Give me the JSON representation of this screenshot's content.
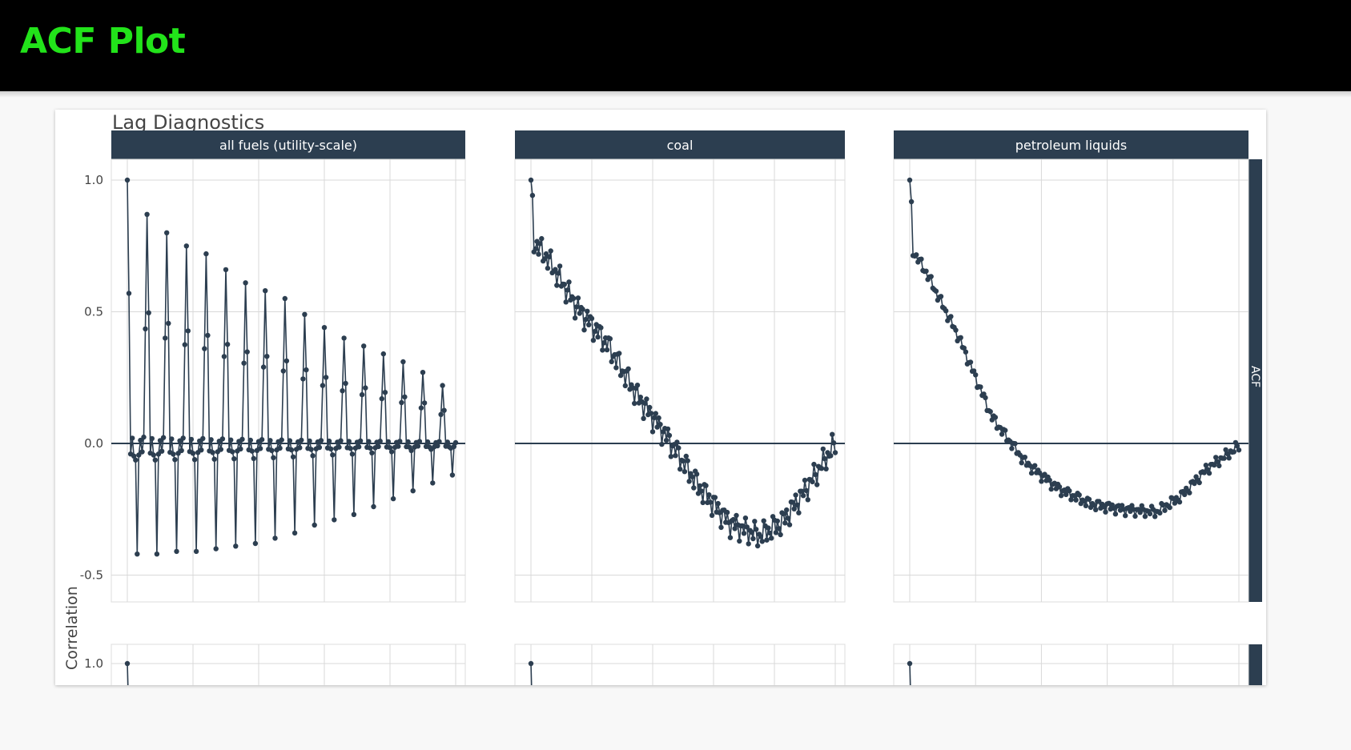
{
  "header": {
    "title": "ACF Plot"
  },
  "chart_data": {
    "type": "line",
    "title": "Lag Diagnostics",
    "ylabel": "Correlation",
    "side_strip_label": "ACF",
    "ylim": [
      -0.6,
      1.05
    ],
    "y_ticks": [
      "1.0",
      "0.5",
      "0.0",
      "-0.5"
    ],
    "series_color": "#2c3e50",
    "facets": [
      {
        "label": "all fuels (utility-scale)",
        "pattern": "seasonal",
        "n_lags": 200,
        "peaks": [
          1.0,
          0.87,
          0.8,
          0.75,
          0.72,
          0.66,
          0.61,
          0.58,
          0.55,
          0.49,
          0.44,
          0.4,
          0.37,
          0.34,
          0.31,
          0.27,
          0.22,
          0.17,
          0.12,
          0.07,
          0.04
        ],
        "troughs": [
          -0.42,
          -0.42,
          -0.41,
          -0.41,
          -0.4,
          -0.39,
          -0.38,
          -0.36,
          -0.34,
          -0.31,
          -0.29,
          -0.27,
          -0.24,
          -0.21,
          -0.18,
          -0.15,
          -0.12,
          -0.09,
          -0.06,
          -0.03,
          0.0
        ]
      },
      {
        "label": "coal",
        "pattern": "decay",
        "n_lags": 200,
        "trend_lags": [
          0,
          10,
          30,
          50,
          70,
          90,
          110,
          130,
          150,
          165,
          180,
          200
        ],
        "trend_values": [
          0.78,
          0.71,
          0.52,
          0.38,
          0.18,
          0.02,
          -0.16,
          -0.3,
          -0.35,
          -0.3,
          -0.18,
          0.0
        ],
        "noise": 0.035
      },
      {
        "label": "petroleum liquids",
        "pattern": "decay",
        "n_lags": 200,
        "trend_lags": [
          0,
          10,
          30,
          50,
          70,
          90,
          110,
          130,
          150,
          165,
          180,
          200
        ],
        "trend_values": [
          0.75,
          0.65,
          0.4,
          0.1,
          -0.07,
          -0.17,
          -0.23,
          -0.25,
          -0.26,
          -0.2,
          -0.1,
          -0.01
        ],
        "noise": 0.015
      }
    ],
    "second_row": {
      "y_tick": "1.0"
    }
  }
}
